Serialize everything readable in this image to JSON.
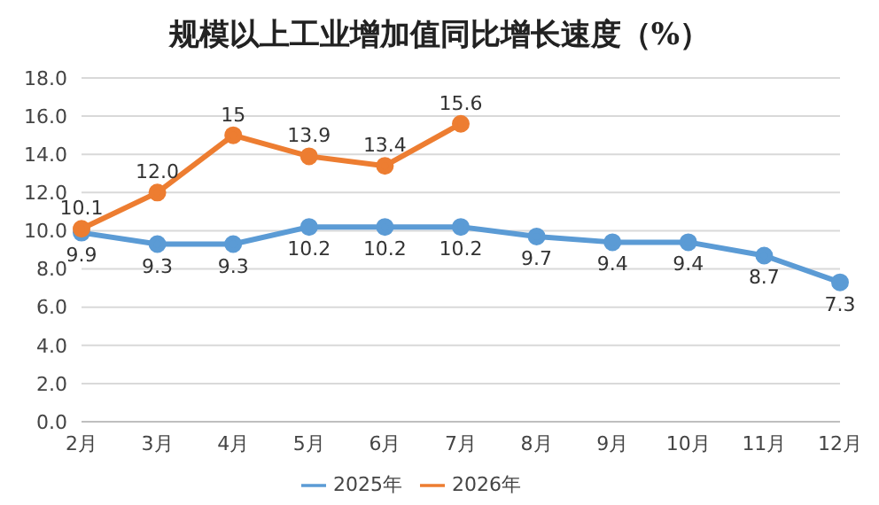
{
  "chart_data": {
    "type": "line",
    "title": "规模以上工业增加值同比增长速度（%）",
    "categories": [
      "2月",
      "3月",
      "4月",
      "5月",
      "6月",
      "7月",
      "8月",
      "9月",
      "10月",
      "11月",
      "12月"
    ],
    "series": [
      {
        "name": "2025年",
        "color": "#5b9bd5",
        "values": [
          9.9,
          9.3,
          9.3,
          10.2,
          10.2,
          10.2,
          9.7,
          9.4,
          9.4,
          8.7,
          7.3
        ],
        "value_labels": [
          "9.9",
          "9.3",
          "9.3",
          "10.2",
          "10.2",
          "10.2",
          "9.7",
          "9.4",
          "9.4",
          "8.7",
          "7.3"
        ]
      },
      {
        "name": "2026年",
        "color": "#ed7d31",
        "values": [
          10.1,
          12.0,
          15,
          13.9,
          13.4,
          15.6,
          null,
          null,
          null,
          null,
          null
        ],
        "value_labels": [
          "10.1",
          "12.0",
          "15",
          "13.9",
          "13.4",
          "15.6",
          null,
          null,
          null,
          null,
          null
        ]
      }
    ],
    "ylim": [
      0,
      18
    ],
    "yticks": [
      {
        "value": 0,
        "label": "0.0"
      },
      {
        "value": 2,
        "label": "2.0"
      },
      {
        "value": 4,
        "label": "4.0"
      },
      {
        "value": 6,
        "label": "6.0"
      },
      {
        "value": 8,
        "label": "8.0"
      },
      {
        "value": 10,
        "label": "10.0"
      },
      {
        "value": 12,
        "label": "12.0"
      },
      {
        "value": 14,
        "label": "14.0"
      },
      {
        "value": 16,
        "label": "16.0"
      },
      {
        "value": 18,
        "label": "18.0"
      }
    ],
    "grid": "y",
    "legend": "bottom",
    "marker": "circle",
    "line_style": "solid"
  }
}
